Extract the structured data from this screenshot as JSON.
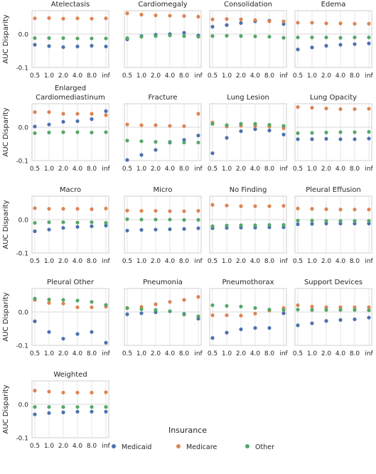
{
  "figure": {
    "ylabel": "AUC Disparity",
    "legend_title": "Insurance",
    "colors": {
      "Medicaid": "#4c72b0",
      "Medicare": "#dd8452",
      "Other": "#55a868"
    }
  },
  "chart_data": {
    "type": "scatter",
    "x_categories": [
      "0.5",
      "1.0",
      "2.0",
      "4.0",
      "8.0",
      "inf"
    ],
    "ylim": [
      -0.1,
      0.07
    ],
    "yticks": [
      "0.0",
      "-0.1"
    ],
    "ylabel": "AUC Disparity",
    "legend": {
      "title": "Insurance",
      "placement": "bottom-center",
      "entries": [
        "Medicaid",
        "Medicare",
        "Other"
      ]
    },
    "panels": [
      {
        "title": "Atelectasis",
        "series": [
          {
            "name": "Medicaid",
            "values": [
              -0.032,
              -0.036,
              -0.039,
              -0.037,
              -0.035,
              -0.037
            ]
          },
          {
            "name": "Medicare",
            "values": [
              0.047,
              0.048,
              0.046,
              0.047,
              0.046,
              0.047
            ]
          },
          {
            "name": "Other",
            "values": [
              -0.012,
              -0.012,
              -0.012,
              -0.013,
              -0.013,
              -0.013
            ]
          }
        ]
      },
      {
        "title": "Cardiomegaly",
        "series": [
          {
            "name": "Medicaid",
            "values": [
              -0.016,
              -0.006,
              -0.002,
              0.0,
              0.004,
              -0.004
            ]
          },
          {
            "name": "Medicare",
            "values": [
              0.062,
              0.058,
              0.056,
              0.055,
              0.054,
              0.052
            ]
          },
          {
            "name": "Other",
            "values": [
              -0.012,
              -0.008,
              -0.006,
              -0.004,
              -0.006,
              -0.008
            ]
          }
        ]
      },
      {
        "title": "Consolidation",
        "series": [
          {
            "name": "Medicaid",
            "values": [
              0.022,
              0.027,
              0.033,
              0.038,
              0.04,
              0.03
            ]
          },
          {
            "name": "Medicare",
            "values": [
              0.044,
              0.045,
              0.044,
              0.042,
              0.038,
              0.038
            ]
          },
          {
            "name": "Other",
            "values": [
              -0.006,
              -0.005,
              -0.006,
              -0.007,
              -0.008,
              -0.011
            ]
          }
        ]
      },
      {
        "title": "Edema",
        "series": [
          {
            "name": "Medicaid",
            "values": [
              -0.046,
              -0.04,
              -0.035,
              -0.032,
              -0.03,
              -0.028
            ]
          },
          {
            "name": "Medicare",
            "values": [
              0.034,
              0.034,
              0.032,
              0.032,
              0.031,
              0.031
            ]
          },
          {
            "name": "Other",
            "values": [
              -0.01,
              -0.01,
              -0.01,
              -0.011,
              -0.01,
              -0.01
            ]
          }
        ]
      },
      {
        "title": "Enlarged\nCardiomediastinum",
        "series": [
          {
            "name": "Medicaid",
            "values": [
              0.002,
              0.008,
              0.016,
              0.018,
              0.024,
              0.048
            ]
          },
          {
            "name": "Medicare",
            "values": [
              0.045,
              0.045,
              0.04,
              0.04,
              0.04,
              0.036
            ]
          },
          {
            "name": "Other",
            "values": [
              -0.018,
              -0.016,
              -0.015,
              -0.015,
              -0.016,
              -0.015
            ]
          }
        ]
      },
      {
        "title": "Fracture",
        "series": [
          {
            "name": "Medicaid",
            "values": [
              -0.098,
              -0.083,
              -0.068,
              -0.046,
              -0.038,
              -0.025
            ]
          },
          {
            "name": "Medicare",
            "values": [
              0.008,
              0.006,
              0.006,
              0.004,
              0.003,
              0.04
            ]
          },
          {
            "name": "Other",
            "values": [
              -0.04,
              -0.042,
              -0.044,
              -0.044,
              -0.046,
              -0.046
            ]
          }
        ]
      },
      {
        "title": "Lung Lesion",
        "series": [
          {
            "name": "Medicaid",
            "values": [
              -0.078,
              -0.032,
              -0.012,
              -0.006,
              -0.01,
              -0.022
            ]
          },
          {
            "name": "Medicare",
            "values": [
              0.014,
              0.002,
              0.004,
              0.004,
              0.002,
              -0.003
            ]
          },
          {
            "name": "Other",
            "values": [
              0.01,
              0.006,
              0.01,
              0.01,
              0.007,
              0.004
            ]
          }
        ]
      },
      {
        "title": "Lung Opacity",
        "series": [
          {
            "name": "Medicaid",
            "values": [
              -0.036,
              -0.036,
              -0.035,
              -0.036,
              -0.036,
              -0.034
            ]
          },
          {
            "name": "Medicare",
            "values": [
              0.06,
              0.058,
              0.056,
              0.054,
              0.054,
              0.055
            ]
          },
          {
            "name": "Other",
            "values": [
              -0.018,
              -0.017,
              -0.016,
              -0.015,
              -0.015,
              -0.014
            ]
          }
        ]
      },
      {
        "title": "Macro",
        "series": [
          {
            "name": "Medicaid",
            "values": [
              -0.035,
              -0.03,
              -0.025,
              -0.022,
              -0.02,
              -0.018
            ]
          },
          {
            "name": "Medicare",
            "values": [
              0.034,
              0.032,
              0.032,
              0.032,
              0.031,
              0.033
            ]
          },
          {
            "name": "Other",
            "values": [
              -0.01,
              -0.008,
              -0.008,
              -0.009,
              -0.008,
              -0.01
            ]
          }
        ]
      },
      {
        "title": "Micro",
        "series": [
          {
            "name": "Medicaid",
            "values": [
              -0.033,
              -0.031,
              -0.03,
              -0.029,
              -0.028,
              -0.026
            ]
          },
          {
            "name": "Medicare",
            "values": [
              0.027,
              0.026,
              0.026,
              0.025,
              0.025,
              0.026
            ]
          },
          {
            "name": "Other",
            "values": [
              0.001,
              0.0,
              0.0,
              0.0,
              -0.001,
              -0.001
            ]
          }
        ]
      },
      {
        "title": "No Finding",
        "series": [
          {
            "name": "Medicaid",
            "values": [
              -0.026,
              -0.025,
              -0.024,
              -0.024,
              -0.023,
              -0.023
            ]
          },
          {
            "name": "Medicare",
            "values": [
              0.044,
              0.042,
              0.04,
              0.04,
              0.04,
              0.041
            ]
          },
          {
            "name": "Other",
            "values": [
              -0.02,
              -0.018,
              -0.017,
              -0.017,
              -0.016,
              -0.016
            ]
          }
        ]
      },
      {
        "title": "Pleural Effusion",
        "series": [
          {
            "name": "Medicaid",
            "values": [
              -0.014,
              -0.013,
              -0.012,
              -0.012,
              -0.012,
              -0.012
            ]
          },
          {
            "name": "Medicare",
            "values": [
              0.033,
              0.032,
              0.031,
              0.03,
              0.03,
              0.03
            ]
          },
          {
            "name": "Other",
            "values": [
              -0.003,
              -0.003,
              -0.004,
              -0.004,
              -0.004,
              -0.004
            ]
          }
        ]
      },
      {
        "title": "Pleural Other",
        "series": [
          {
            "name": "Medicaid",
            "values": [
              -0.028,
              -0.06,
              -0.08,
              -0.066,
              -0.06,
              -0.092
            ]
          },
          {
            "name": "Medicare",
            "values": [
              0.036,
              0.027,
              0.025,
              0.014,
              0.014,
              0.016
            ]
          },
          {
            "name": "Other",
            "values": [
              0.04,
              0.037,
              0.036,
              0.034,
              0.03,
              0.021
            ]
          }
        ]
      },
      {
        "title": "Pneumonia",
        "series": [
          {
            "name": "Medicaid",
            "values": [
              -0.007,
              -0.004,
              -0.001,
              0.002,
              -0.006,
              -0.02
            ]
          },
          {
            "name": "Medicare",
            "values": [
              0.011,
              0.015,
              0.023,
              0.03,
              0.036,
              0.045
            ]
          },
          {
            "name": "Other",
            "values": [
              0.012,
              0.008,
              0.006,
              0.002,
              -0.008,
              -0.013
            ]
          }
        ]
      },
      {
        "title": "Pneumothorax",
        "series": [
          {
            "name": "Medicaid",
            "values": [
              -0.078,
              -0.062,
              -0.052,
              -0.048,
              -0.048,
              -0.004
            ]
          },
          {
            "name": "Medicare",
            "values": [
              -0.01,
              -0.01,
              -0.011,
              -0.005,
              0.004,
              0.012
            ]
          },
          {
            "name": "Other",
            "values": [
              0.02,
              0.018,
              0.016,
              0.012,
              0.007,
              0.006
            ]
          }
        ]
      },
      {
        "title": "Support Devices",
        "series": [
          {
            "name": "Medicaid",
            "values": [
              -0.04,
              -0.034,
              -0.027,
              -0.024,
              -0.022,
              -0.017
            ]
          },
          {
            "name": "Medicare",
            "values": [
              0.02,
              0.016,
              0.014,
              0.014,
              0.014,
              0.014
            ]
          },
          {
            "name": "Other",
            "values": [
              0.007,
              0.006,
              0.006,
              0.006,
              0.006,
              0.005
            ]
          }
        ]
      },
      {
        "title": "Weighted",
        "series": [
          {
            "name": "Medicaid",
            "values": [
              -0.03,
              -0.026,
              -0.024,
              -0.022,
              -0.022,
              -0.022
            ]
          },
          {
            "name": "Medicare",
            "values": [
              0.041,
              0.038,
              0.035,
              0.035,
              0.035,
              0.036
            ]
          },
          {
            "name": "Other",
            "values": [
              -0.008,
              -0.008,
              -0.008,
              -0.008,
              -0.008,
              -0.008
            ]
          }
        ]
      }
    ]
  }
}
